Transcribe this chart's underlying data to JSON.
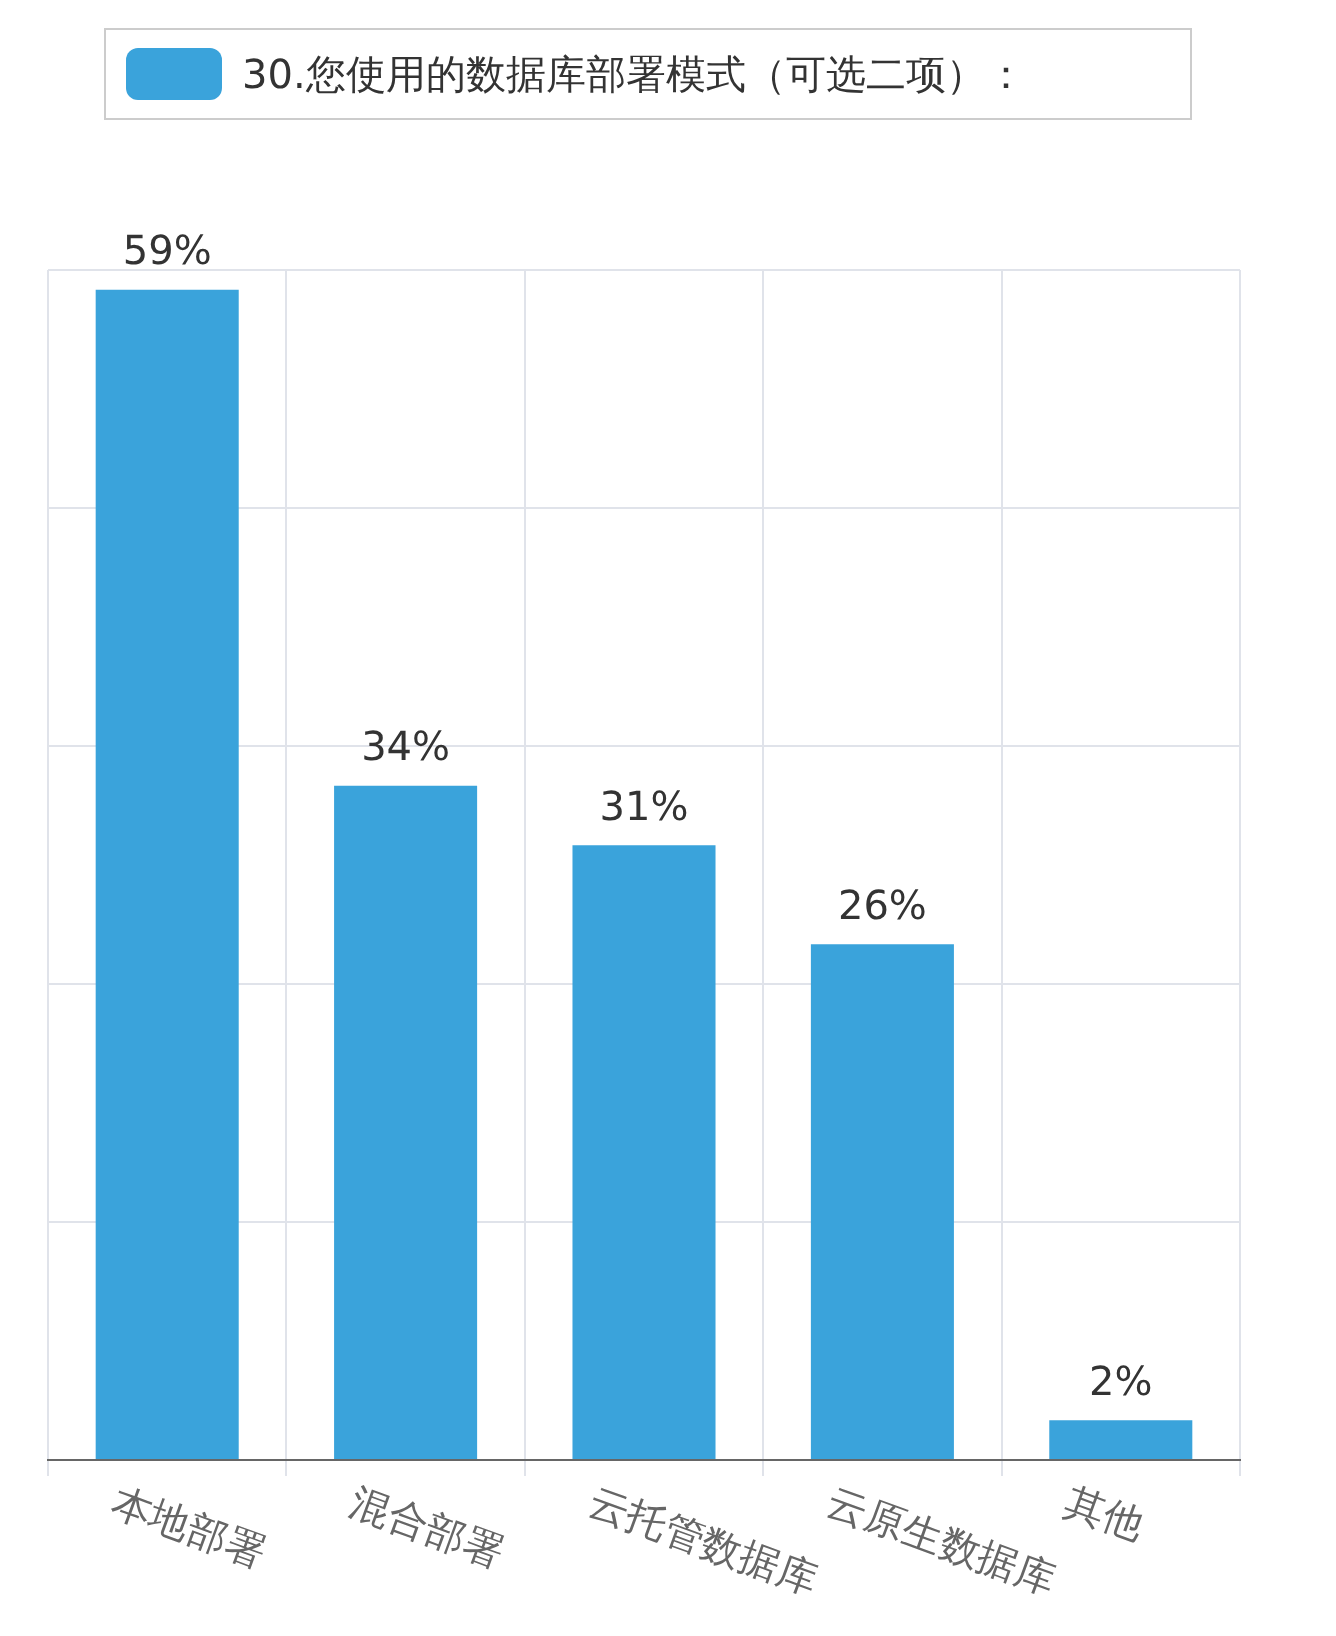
{
  "chart_data": {
    "type": "bar",
    "categories": [
      "本地部署",
      "混合部署",
      "云托管数据库",
      "云原生数据库",
      "其他"
    ],
    "series": [
      {
        "name": "30.您使用的数据库部署模式（可选二项）：",
        "color": "#3aa3db",
        "values": [
          59,
          34,
          31,
          26,
          2
        ],
        "value_labels": [
          "59%",
          "34%",
          "31%",
          "26%",
          "2%"
        ]
      }
    ],
    "grid": true,
    "legend": "top",
    "tick_labels": "x"
  }
}
